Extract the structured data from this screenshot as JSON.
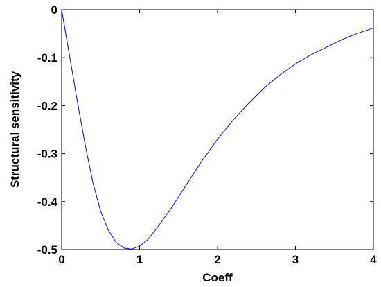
{
  "chart_data": {
    "type": "line",
    "title": "",
    "xlabel": "Coeff",
    "ylabel": "Structural sensitivity",
    "xlim": [
      0,
      4
    ],
    "ylim": [
      -0.5,
      0
    ],
    "xticks": [
      0,
      1,
      2,
      3,
      4
    ],
    "xtick_labels": [
      "0",
      "1",
      "2",
      "3",
      "4"
    ],
    "yticks": [
      0,
      -0.1,
      -0.2,
      -0.3,
      -0.4,
      -0.5
    ],
    "ytick_labels": [
      "0",
      "-0.1",
      "-0.2",
      "-0.3",
      "-0.4",
      "-0.5"
    ],
    "grid": false,
    "legend": "none",
    "series": [
      {
        "color": "#0000ff",
        "x": [
          0,
          0.1,
          0.2,
          0.3,
          0.4,
          0.5,
          0.6,
          0.7,
          0.8,
          0.9,
          1.0,
          1.1,
          1.2,
          1.4,
          1.6,
          1.8,
          2.0,
          2.2,
          2.4,
          2.6,
          2.8,
          3.0,
          3.2,
          3.4,
          3.6,
          3.8,
          4.0
        ],
        "y": [
          0,
          -0.095,
          -0.19,
          -0.28,
          -0.36,
          -0.42,
          -0.46,
          -0.485,
          -0.497,
          -0.499,
          -0.493,
          -0.48,
          -0.46,
          -0.415,
          -0.365,
          -0.315,
          -0.27,
          -0.23,
          -0.195,
          -0.163,
          -0.136,
          -0.113,
          -0.094,
          -0.078,
          -0.062,
          -0.049,
          -0.038
        ]
      }
    ]
  }
}
